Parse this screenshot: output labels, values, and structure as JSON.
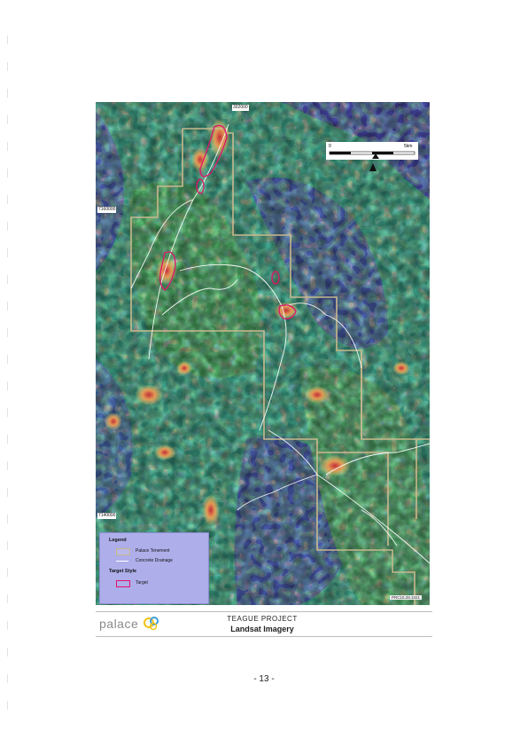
{
  "map": {
    "grid_labels": {
      "easting_top": "302000",
      "northing_upper": "7160000",
      "northing_lower": "7140000"
    },
    "scale": {
      "start": "0",
      "end": "5km"
    },
    "figure_code": "PRC15.28.1021",
    "colors": {
      "tenement": "#c9b98e",
      "drainage": "#ffffff",
      "target": "#e0136b",
      "water": "#4a4ab4"
    }
  },
  "legend": {
    "title": "Legend",
    "tenement_label": "Palace Tenement",
    "drainage_label": "Concrete Drainage",
    "target_style_title": "Target Style",
    "target_label": "Target"
  },
  "footer": {
    "logo_text": "palace",
    "project": "TEAGUE PROJECT",
    "subtitle": "Landsat Imagery",
    "page_number": "- 13 -"
  }
}
